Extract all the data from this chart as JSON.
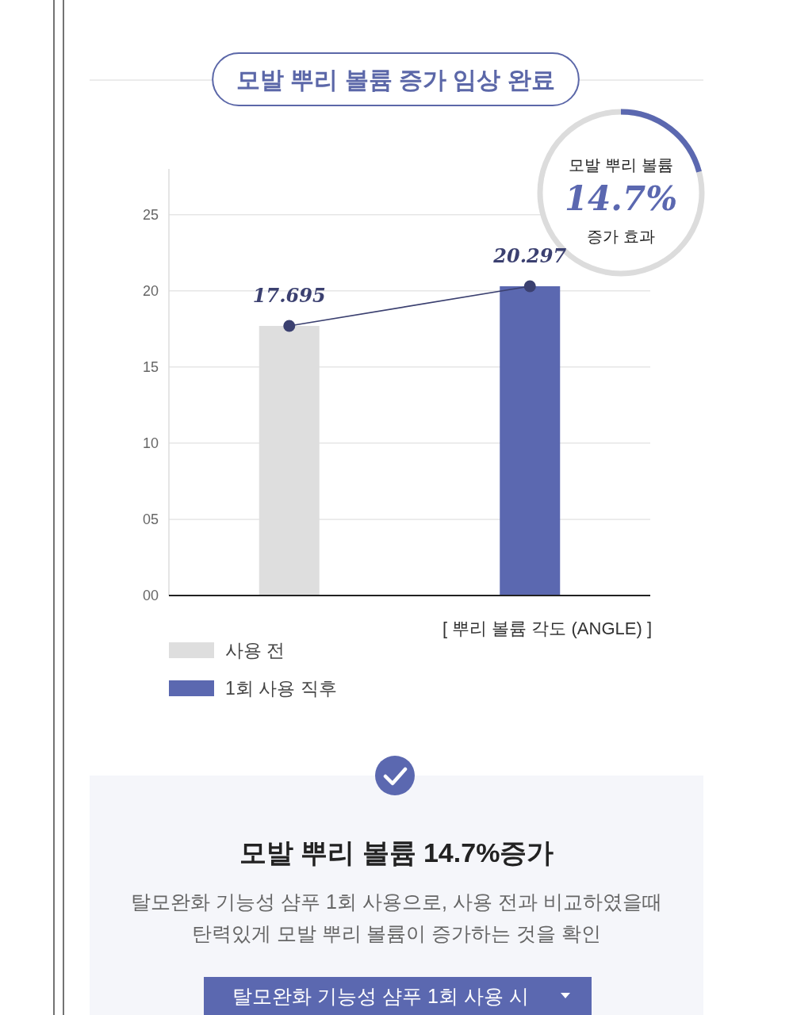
{
  "chart_data": [
    {
      "type": "bar",
      "title": "모발 뿌리 볼륨 증가 임상 완료",
      "xlabel": "[ 뿌리 볼륨 각도 (ANGLE) ]",
      "annotations": [
        "모발 뿌리 볼륨",
        "14.7%",
        "증가 효과"
      ],
      "categories": [
        null,
        null
      ],
      "series": [
        {
          "name": "사용 전",
          "color": "#dedede",
          "values": [
            17.695,
            null
          ]
        },
        {
          "name": "1회 사용 직후",
          "color": "#5b68b0",
          "values": [
            null,
            20.297
          ]
        },
        {
          "type": "line",
          "color": "#3b4070",
          "marker": "circle",
          "values": [
            17.695,
            20.297
          ],
          "value_labels": [
            "17.695",
            "20.297"
          ]
        }
      ],
      "ylim": [
        0,
        28
      ],
      "yticks": [
        {
          "value": 0,
          "label": "00"
        },
        {
          "value": 5,
          "label": "05"
        },
        10,
        15,
        20,
        25
      ],
      "grid": "y",
      "legend": "bottom left",
      "tick_labels": "y"
    },
    {
      "type": "other",
      "title": "모발 뿌리 볼륨 14.7%증가",
      "annotations": [
        "탈모완화 기능성 샴푸 1회 사용으로, 사용 전과 비교하였을때\n탄력있게 모발 뿌리 볼륨이 증가하는 것을 확인",
        "탈모완화 기능성 샴푸 1회 사용 시"
      ]
    }
  ]
}
